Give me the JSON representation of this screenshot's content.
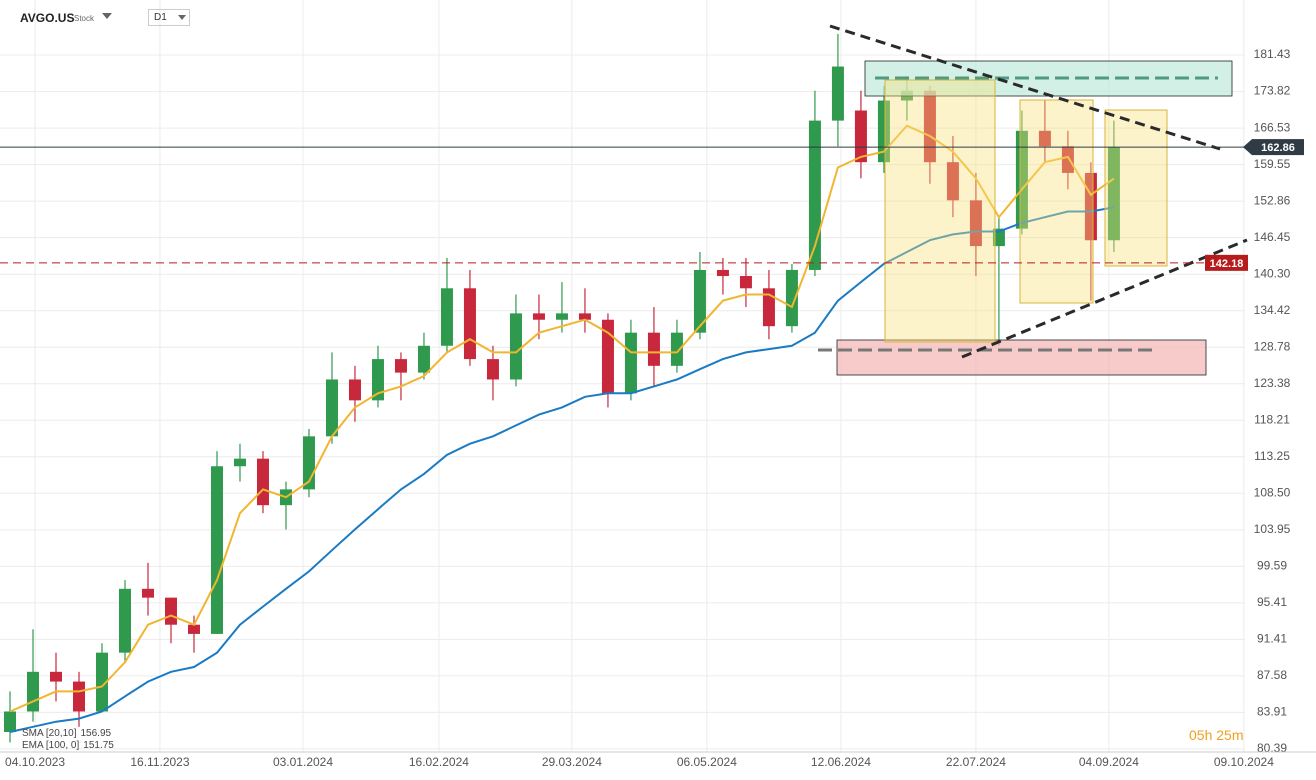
{
  "header": {
    "symbol": "AVGO.US",
    "kind": "Stock",
    "timeframe": "D1"
  },
  "countdown": "05h 25m",
  "chart_data": {
    "type": "candlestick",
    "log_scale": true,
    "grid": true,
    "ylim": [
      80.1,
      192.4
    ],
    "yticks": [
      80.39,
      83.91,
      87.58,
      91.41,
      95.41,
      99.59,
      103.95,
      {
        "value": 108.5,
        "label": "108.50"
      },
      113.25,
      118.21,
      123.38,
      128.78,
      134.42,
      {
        "value": 140.3,
        "label": "140.30"
      },
      146.45,
      152.86,
      159.55,
      166.53,
      173.82,
      181.43
    ],
    "xlim": [
      -0.435,
      53.7
    ],
    "xticks": [
      {
        "value": 1.09,
        "label": "04.10.2023"
      },
      {
        "value": 6.52,
        "label": "16.11.2023"
      },
      {
        "value": 12.74,
        "label": "03.01.2024"
      },
      {
        "value": 18.65,
        "label": "16.02.2024"
      },
      {
        "value": 24.43,
        "label": "29.03.2024"
      },
      {
        "value": 30.3,
        "label": "06.05.2024"
      },
      {
        "value": 36.13,
        "label": "12.06.2024"
      },
      {
        "value": 42.0,
        "label": "22.07.2024"
      },
      {
        "value": 47.78,
        "label": "04.09.2024"
      },
      {
        "value": 53.65,
        "label": "09.10.2024"
      }
    ],
    "up_color": "#2f9a4e",
    "down_color": "#c8283c",
    "open": [
      82,
      84,
      88,
      87,
      84,
      90,
      97,
      96,
      93,
      92,
      112,
      113,
      107,
      109,
      116,
      124,
      121,
      127,
      125,
      129,
      138,
      127,
      124,
      134,
      133,
      134,
      133,
      122,
      131,
      126,
      131,
      141,
      140,
      138,
      132,
      141,
      168,
      170,
      160,
      172,
      174,
      160,
      153,
      145,
      148,
      166,
      163,
      158,
      146
    ],
    "high": [
      86,
      92.5,
      90,
      88,
      91,
      98,
      100,
      96,
      94,
      114,
      115,
      114,
      110,
      117,
      128,
      126,
      129,
      128,
      131,
      143,
      141,
      129,
      137,
      137,
      139,
      138,
      134,
      133,
      135,
      133,
      144,
      143,
      143,
      141,
      142,
      174,
      186,
      174,
      175,
      177,
      175,
      165,
      158,
      150,
      170,
      172,
      166,
      160,
      168
    ],
    "low": [
      81,
      83,
      85,
      82.5,
      84,
      89,
      94,
      91,
      90,
      92,
      110,
      106,
      104,
      108,
      115,
      118,
      120,
      121,
      124,
      128,
      126,
      121,
      123,
      130,
      131,
      131,
      120,
      121,
      123,
      125,
      130,
      137,
      135,
      130,
      131,
      140,
      163,
      157,
      158,
      168,
      156,
      150,
      140,
      129,
      147,
      160,
      155,
      136,
      144
    ],
    "close": [
      84,
      88,
      87,
      84,
      90,
      97,
      96,
      93,
      92,
      112,
      113,
      107,
      109,
      116,
      124,
      121,
      127,
      125,
      129,
      138,
      127,
      124,
      134,
      133,
      134,
      133,
      122,
      131,
      126,
      131,
      141,
      140,
      138,
      132,
      141,
      168,
      179,
      160,
      172,
      174,
      160,
      153,
      145,
      148,
      166,
      163,
      158,
      146,
      162.86
    ],
    "series": [
      {
        "name": "SMA [20,10]",
        "color": "#f2b530",
        "last": 156.95,
        "values": [
          84,
          85,
          86,
          86,
          86.5,
          89,
          93,
          94,
          93,
          98,
          106,
          109,
          108,
          110,
          116,
          120,
          122,
          123,
          124.5,
          128,
          130,
          128,
          128,
          131,
          132,
          133,
          131,
          128,
          128,
          128,
          132,
          136,
          137,
          137,
          135,
          145,
          159,
          161,
          162,
          167,
          165,
          162,
          157,
          150,
          155,
          160,
          161,
          154,
          156.95
        ]
      },
      {
        "name": "EMA [100, 0]",
        "color": "#1a7bc4",
        "last": 151.75,
        "values": [
          82,
          82.5,
          83,
          83.3,
          84,
          85.5,
          87,
          88,
          88.5,
          90,
          93,
          95,
          97,
          99,
          101.5,
          104,
          106.5,
          109,
          111,
          113.5,
          115,
          116,
          117.5,
          119,
          120,
          121.5,
          122,
          122,
          123,
          124,
          125.5,
          127,
          128,
          128.5,
          129,
          131,
          136,
          139,
          142,
          144,
          146,
          147,
          147.5,
          147.5,
          149,
          150,
          151,
          151,
          151.75
        ]
      }
    ],
    "levels": [
      {
        "value": 162.86,
        "color": "#2f3b45",
        "style": "solid"
      },
      {
        "value": 142.18,
        "color": "#b71c1c",
        "style": "dashed"
      }
    ]
  }
}
